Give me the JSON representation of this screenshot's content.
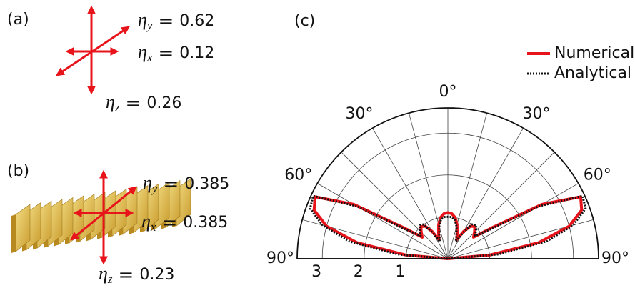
{
  "panel_a": {
    "label": "(a)",
    "efficiencies": [
      {
        "symbol": "η",
        "sub": "y",
        "relation": "=",
        "value": 0.62
      },
      {
        "symbol": "η",
        "sub": "x",
        "relation": "=",
        "value": 0.12
      },
      {
        "symbol": "η",
        "sub": "z",
        "relation": "=",
        "value": 0.26
      }
    ]
  },
  "panel_b": {
    "label": "(b)",
    "efficiencies": [
      {
        "symbol": "η",
        "sub": "y",
        "relation": "=",
        "value": 0.385
      },
      {
        "symbol": "η",
        "sub": "x",
        "relation": "=",
        "value": 0.385
      },
      {
        "symbol": "η",
        "sub": "z",
        "relation": "=",
        "value": 0.23
      }
    ]
  },
  "chart_data": {
    "type": "polar",
    "label": "(c)",
    "theta": [
      -90,
      -85,
      -80,
      -75,
      -70,
      -65,
      -60,
      -55,
      -50,
      -45,
      -40,
      -35,
      -30,
      -25,
      -20,
      -15,
      -10,
      -5,
      0,
      5,
      10,
      15,
      20,
      25,
      30,
      35,
      40,
      45,
      50,
      55,
      60,
      65,
      70,
      75,
      80,
      85,
      90
    ],
    "series": [
      {
        "name": "Numerical",
        "color": "#e8141b",
        "linestyle": "solid",
        "values": [
          0,
          1.0,
          2.2,
          3.0,
          3.4,
          3.5,
          2.6,
          1.3,
          0.8,
          0.9,
          1.0,
          0.95,
          0.75,
          0.5,
          0.65,
          0.85,
          1.0,
          1.08,
          1.1,
          1.08,
          1.0,
          0.85,
          0.65,
          0.5,
          0.75,
          0.95,
          1.0,
          0.9,
          0.8,
          1.3,
          2.6,
          3.5,
          3.4,
          3.0,
          2.2,
          1.0,
          0
        ]
      },
      {
        "name": "Analytical",
        "color": "#111111",
        "linestyle": "dotted",
        "values": [
          0,
          1.2,
          2.4,
          3.1,
          3.5,
          3.55,
          2.5,
          1.2,
          0.85,
          0.95,
          1.05,
          1.0,
          0.7,
          0.45,
          0.6,
          0.8,
          0.95,
          1.0,
          1.0,
          1.0,
          0.95,
          0.8,
          0.6,
          0.45,
          0.7,
          1.0,
          1.05,
          0.95,
          0.85,
          1.2,
          2.5,
          3.55,
          3.5,
          3.1,
          2.4,
          1.2,
          0
        ]
      }
    ],
    "rlim": [
      0,
      3.6
    ],
    "rticks": [
      1,
      2,
      3
    ],
    "thetaticks": [
      {
        "value": -90,
        "label": "90°"
      },
      {
        "value": -60,
        "label": "60°"
      },
      {
        "value": -30,
        "label": "30°"
      },
      {
        "value": 0,
        "label": "0°"
      },
      {
        "value": 30,
        "label": "30°"
      },
      {
        "value": 60,
        "label": "60°"
      },
      {
        "value": 90,
        "label": "90°"
      }
    ],
    "theta_grid": [
      -75,
      -60,
      -45,
      -30,
      -15,
      0,
      15,
      30,
      45,
      60,
      75
    ],
    "grid": true,
    "legend": "upper right"
  }
}
